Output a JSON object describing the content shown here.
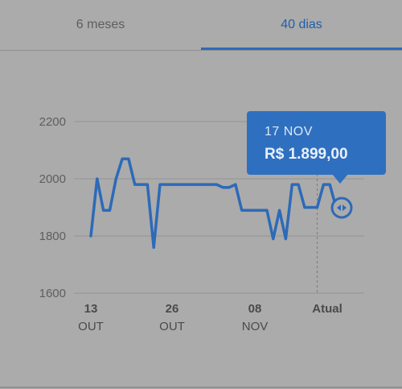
{
  "tabs": [
    {
      "label": "6 meses",
      "active": false
    },
    {
      "label": "40 dias",
      "active": true
    }
  ],
  "tooltip": {
    "date": "17 NOV",
    "price": "R$ 1.899,00"
  },
  "colors": {
    "accent": "#2f6fbf",
    "line": "#2d6ab8",
    "background": "#ababab",
    "grid": "#939393"
  },
  "chart_data": {
    "type": "line",
    "title": "",
    "xlabel": "",
    "ylabel": "",
    "ylim": [
      1600,
      2200
    ],
    "y_ticks": [
      "2200",
      "2000",
      "1800",
      "1600"
    ],
    "x_ticks": [
      {
        "day": "13",
        "month": "OUT"
      },
      {
        "day": "26",
        "month": "OUT"
      },
      {
        "day": "08",
        "month": "NOV"
      },
      {
        "day": "Atual",
        "month": ""
      }
    ],
    "grid": true,
    "marker_icon": "scrub-handle-icon",
    "series": [
      {
        "values": [
          1800,
          2000,
          1890,
          1890,
          2000,
          2070,
          2070,
          1980,
          1980,
          1980,
          1760,
          1980,
          1980,
          1980,
          1980,
          1980,
          1980,
          1980,
          1980,
          1980,
          1980,
          1970,
          1970,
          1980,
          1890,
          1890,
          1890,
          1890,
          1890,
          1790,
          1890,
          1790,
          1980,
          1980,
          1900,
          1900,
          1900,
          1980,
          1980,
          1900
        ]
      }
    ]
  }
}
